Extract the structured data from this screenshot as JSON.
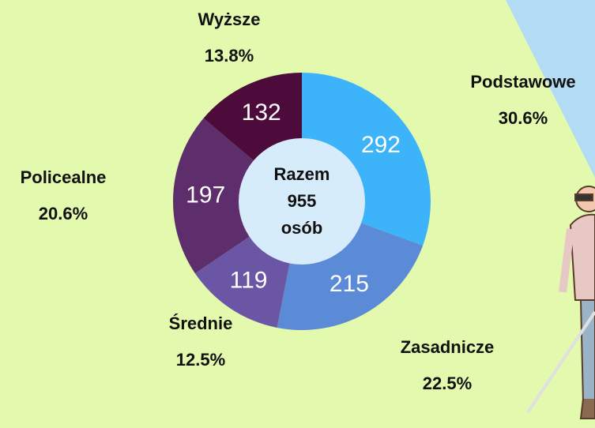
{
  "chart_data": {
    "type": "donut",
    "categories": [
      "Podstawowe",
      "Zasadnicze",
      "Średnie",
      "Policealne",
      "Wyższe"
    ],
    "values": [
      292,
      215,
      119,
      197,
      132
    ],
    "percentages": [
      {
        "value": 30.6,
        "label": "30.6%"
      },
      {
        "value": 22.5,
        "label": "22.5%"
      },
      {
        "value": 12.5,
        "label": "12.5%"
      },
      {
        "value": 20.6,
        "label": "20.6%"
      },
      {
        "value": 13.8,
        "label": "13.8%"
      }
    ],
    "colors": [
      "#3db4f9",
      "#5b8ad7",
      "#6b56a5",
      "#5e2d6b",
      "#4d0b3b"
    ],
    "center_text": {
      "line1": "Razem",
      "total": 955,
      "line3": "osób"
    }
  }
}
